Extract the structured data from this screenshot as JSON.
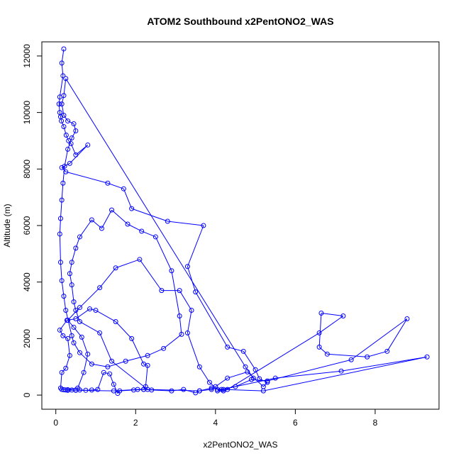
{
  "chart_data": {
    "type": "line",
    "title": "ATOM2 Southbound x2PentONO2_WAS",
    "xlabel": "x2PentONO2_WAS",
    "ylabel": "Altitude (m)",
    "xlim": [
      -0.35,
      9.6
    ],
    "ylim": [
      -500,
      12500
    ],
    "x_ticks": [
      0,
      2,
      4,
      6,
      8
    ],
    "y_ticks": [
      0,
      2000,
      4000,
      6000,
      8000,
      10000,
      12000
    ],
    "grid": false,
    "color": "#0000ff",
    "marker": "open-circle",
    "series": [
      {
        "points": [
          [
            0.2,
            12250
          ],
          [
            0.15,
            11750
          ],
          [
            0.18,
            11300
          ],
          [
            0.1,
            10550
          ],
          [
            0.08,
            10300
          ],
          [
            0.1,
            10000
          ],
          [
            0.12,
            9850
          ],
          [
            0.14,
            9700
          ],
          [
            0.2,
            9500
          ],
          [
            0.26,
            9200
          ],
          [
            0.32,
            9000
          ],
          [
            0.38,
            8900
          ],
          [
            0.5,
            8500
          ],
          [
            0.8,
            8850
          ],
          [
            0.35,
            8200
          ],
          [
            0.15,
            8050
          ],
          [
            0.25,
            7900
          ],
          [
            1.3,
            7500
          ],
          [
            1.7,
            7300
          ],
          [
            1.9,
            6600
          ],
          [
            2.8,
            6150
          ],
          [
            3.7,
            6000
          ],
          [
            3.3,
            4550
          ],
          [
            3.5,
            3650
          ],
          [
            4.3,
            1700
          ],
          [
            4.7,
            1550
          ],
          [
            5.0,
            900
          ],
          [
            5.1,
            580
          ],
          [
            5.3,
            450
          ],
          [
            5.2,
            300
          ],
          [
            4.8,
            820
          ],
          [
            4.3,
            600
          ],
          [
            4.0,
            300
          ],
          [
            3.9,
            200
          ],
          [
            3.6,
            150
          ],
          [
            3.5,
            80
          ],
          [
            3.2,
            200
          ],
          [
            2.9,
            150
          ],
          [
            2.4,
            180
          ],
          [
            2.2,
            200
          ],
          [
            1.95,
            180
          ],
          [
            1.6,
            150
          ],
          [
            1.55,
            60
          ],
          [
            1.45,
            380
          ],
          [
            1.35,
            750
          ],
          [
            1.2,
            800
          ],
          [
            1.05,
            200
          ],
          [
            0.9,
            180
          ],
          [
            0.75,
            170
          ],
          [
            0.6,
            180
          ],
          [
            0.5,
            180
          ],
          [
            0.4,
            180
          ],
          [
            0.3,
            190
          ],
          [
            0.2,
            190
          ],
          [
            0.15,
            200
          ],
          [
            0.12,
            250
          ],
          [
            0.15,
            800
          ],
          [
            0.25,
            950
          ],
          [
            0.35,
            1400
          ],
          [
            0.3,
            2000
          ],
          [
            0.18,
            2100
          ],
          [
            0.1,
            2300
          ],
          [
            0.28,
            2650
          ],
          [
            0.5,
            2700
          ],
          [
            0.85,
            3050
          ],
          [
            1.0,
            3000
          ],
          [
            1.5,
            2600
          ],
          [
            1.9,
            2000
          ],
          [
            2.2,
            1100
          ],
          [
            2.3,
            1050
          ],
          [
            2.25,
            300
          ],
          [
            2.2,
            200
          ],
          [
            2.05,
            200
          ],
          [
            1.45,
            150
          ],
          [
            0.5,
            170
          ],
          [
            0.3,
            170
          ],
          [
            0.25,
            180
          ],
          [
            0.55,
            250
          ],
          [
            0.7,
            800
          ],
          [
            0.8,
            1450
          ],
          [
            0.65,
            2050
          ],
          [
            0.45,
            2400
          ],
          [
            0.3,
            2650
          ],
          [
            0.6,
            3100
          ],
          [
            1.1,
            3800
          ],
          [
            1.5,
            4500
          ],
          [
            2.1,
            4800
          ],
          [
            2.65,
            3700
          ],
          [
            3.1,
            3700
          ],
          [
            3.4,
            3000
          ],
          [
            3.3,
            2200
          ],
          [
            3.6,
            1000
          ],
          [
            3.85,
            450
          ],
          [
            4.05,
            200
          ],
          [
            4.2,
            150
          ],
          [
            4.3,
            200
          ],
          [
            6.6,
            2200
          ],
          [
            7.2,
            2800
          ],
          [
            6.65,
            2900
          ],
          [
            6.6,
            1700
          ],
          [
            6.8,
            1450
          ],
          [
            7.8,
            1350
          ],
          [
            8.3,
            1550
          ],
          [
            8.8,
            2700
          ],
          [
            7.4,
            1250
          ],
          [
            5.3,
            500
          ],
          [
            4.9,
            550
          ],
          [
            4.5,
            300
          ],
          [
            4.05,
            150
          ],
          [
            4.15,
            200
          ],
          [
            5.5,
            600
          ],
          [
            7.15,
            850
          ],
          [
            9.3,
            1350
          ],
          [
            5.2,
            150
          ],
          [
            4.2,
            200
          ],
          [
            3.9,
            250
          ],
          [
            3.6,
            150
          ],
          [
            2.3,
            200
          ],
          [
            1.4,
            1200
          ],
          [
            1.1,
            2200
          ],
          [
            0.6,
            2600
          ],
          [
            0.5,
            3000
          ],
          [
            0.45,
            3300
          ],
          [
            0.4,
            3900
          ],
          [
            0.35,
            4300
          ],
          [
            0.4,
            4700
          ],
          [
            0.5,
            5200
          ],
          [
            0.6,
            5600
          ],
          [
            0.9,
            6200
          ],
          [
            1.15,
            5900
          ],
          [
            1.4,
            6550
          ],
          [
            1.8,
            6050
          ],
          [
            2.15,
            5800
          ],
          [
            2.5,
            5600
          ],
          [
            2.9,
            4400
          ],
          [
            3.1,
            2800
          ],
          [
            3.15,
            2150
          ],
          [
            2.7,
            1650
          ],
          [
            2.3,
            1400
          ],
          [
            1.75,
            1200
          ],
          [
            1.3,
            1000
          ],
          [
            0.9,
            1100
          ],
          [
            0.6,
            1500
          ],
          [
            0.45,
            1850
          ],
          [
            0.4,
            2100
          ],
          [
            0.25,
            3000
          ],
          [
            0.2,
            3500
          ],
          [
            0.15,
            4050
          ],
          [
            0.12,
            4700
          ],
          [
            0.1,
            5700
          ],
          [
            0.12,
            6250
          ],
          [
            0.15,
            6900
          ],
          [
            0.18,
            7500
          ],
          [
            0.22,
            8100
          ],
          [
            0.3,
            8700
          ],
          [
            0.4,
            9100
          ],
          [
            0.5,
            9350
          ],
          [
            0.45,
            9600
          ],
          [
            0.3,
            9700
          ],
          [
            0.2,
            9900
          ],
          [
            0.15,
            10300
          ],
          [
            0.2,
            10600
          ],
          [
            0.25,
            11200
          ],
          [
            4.75,
            1000
          ],
          [
            4.95,
            600
          ]
        ]
      }
    ]
  }
}
